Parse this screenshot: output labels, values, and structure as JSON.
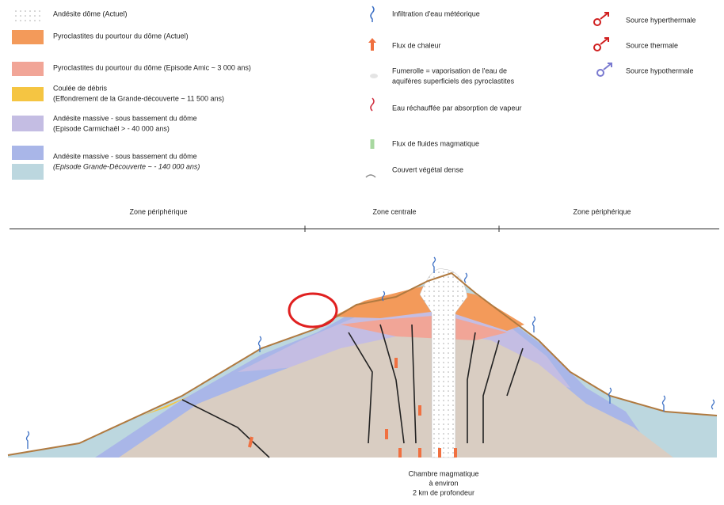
{
  "legend_layers": [
    {
      "lines": [
        "Andésite dôme (Actuel)"
      ]
    },
    {
      "lines": [
        "Pyroclastites du pourtour du dôme (Actuel)"
      ]
    },
    {
      "lines": [
        "Pyroclastites du pourtour du dôme (Episode Amic ~ 3 000 ans)"
      ]
    },
    {
      "lines": [
        "Coulée de débris",
        "(Effondrement de la Grande-découverte ~ 11 500 ans)"
      ]
    },
    {
      "lines": [
        "Andésite massive - sous bassement du dôme",
        "(Episode Carmichaël > - 40 000 ans)"
      ]
    },
    {
      "lines": [
        "Andésite massive - sous bassement du dôme",
        "(Episode Grande-Découverte ~ - 140 000 ans)"
      ]
    }
  ],
  "legend_processes": [
    {
      "lines": [
        "Infiltration d'eau météorique"
      ]
    },
    {
      "lines": [
        "Flux de chaleur"
      ]
    },
    {
      "lines": [
        "Fumerolle = vaporisation de l'eau de",
        "aquifères superficiels des pyroclastites"
      ]
    },
    {
      "lines": [
        "Eau réchauffée par absorption de vapeur"
      ]
    },
    {
      "lines": [
        "Flux de fluides magmatique"
      ]
    },
    {
      "lines": [
        "Couvert végétal dense"
      ]
    }
  ],
  "legend_sources": [
    {
      "lines": [
        "Source hyperthermale"
      ]
    },
    {
      "lines": [
        "Source thermale"
      ]
    },
    {
      "lines": [
        "Source hypothermale"
      ]
    }
  ],
  "zones": [
    "Zone périphérique",
    "Zone centrale",
    "Zone périphérique"
  ],
  "chamber_label": [
    "Chambre magmatique",
    "à environ",
    "2 km de profondeur"
  ]
}
